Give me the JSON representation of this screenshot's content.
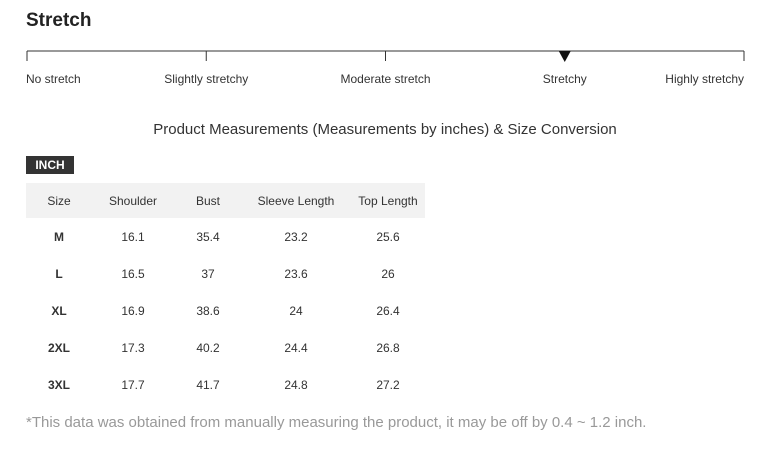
{
  "stretch": {
    "title": "Stretch",
    "levels": [
      "No stretch",
      "Slightly stretchy",
      "Moderate stretch",
      "Stretchy",
      "Highly stretchy"
    ],
    "selected": 3
  },
  "heading": "Product Measurements (Measurements by inches) & Size Conversion",
  "unit_tab": "INCH",
  "table": {
    "header": [
      "Size",
      "Shoulder",
      "Bust",
      "Sleeve Length",
      "Top Length"
    ],
    "rows": [
      [
        "M",
        "16.1",
        "35.4",
        "23.2",
        "25.6"
      ],
      [
        "L",
        "16.5",
        "37",
        "23.6",
        "26"
      ],
      [
        "XL",
        "16.9",
        "38.6",
        "24",
        "26.4"
      ],
      [
        "2XL",
        "17.3",
        "40.2",
        "24.4",
        "26.8"
      ],
      [
        "3XL",
        "17.7",
        "41.7",
        "24.8",
        "27.2"
      ]
    ]
  },
  "note": "*This data was obtained from manually measuring the product, it may be off by 0.4 ~ 1.2 inch."
}
